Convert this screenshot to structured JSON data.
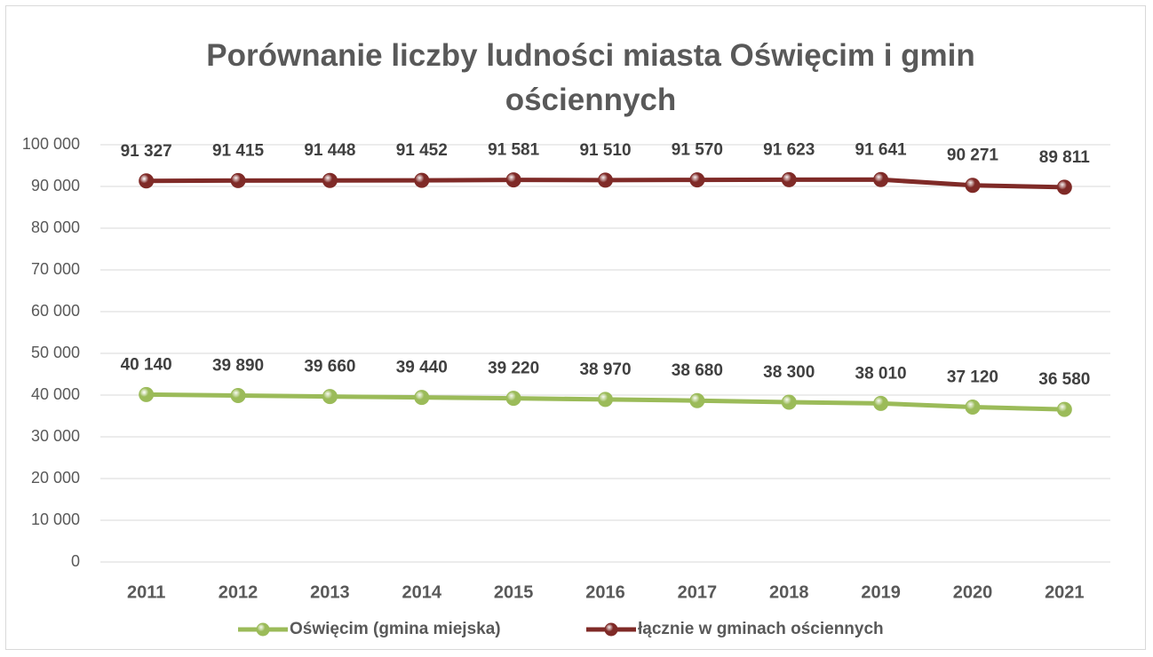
{
  "chart_data": {
    "type": "line",
    "title": "Porównanie liczby ludności miasta Oświęcim i gmin ościennych",
    "categories": [
      "2011",
      "2012",
      "2013",
      "2014",
      "2015",
      "2016",
      "2017",
      "2018",
      "2019",
      "2020",
      "2021"
    ],
    "series": [
      {
        "name": "Oświęcim (gmina miejska)",
        "color": "#9bbb59",
        "values": [
          40140,
          39890,
          39660,
          39440,
          39220,
          38970,
          38680,
          38300,
          38010,
          37120,
          36580
        ],
        "value_labels": [
          "40 140",
          "39 890",
          "39 660",
          "39 440",
          "39 220",
          "38 970",
          "38 680",
          "38 300",
          "38 010",
          "37 120",
          "36 580"
        ]
      },
      {
        "name": "łącznie w gminach ościennych",
        "color": "#7f2a27",
        "values": [
          91327,
          91415,
          91448,
          91452,
          91581,
          91510,
          91570,
          91623,
          91641,
          90271,
          89811
        ],
        "value_labels": [
          "91 327",
          "91 415",
          "91 448",
          "91 452",
          "91 581",
          "91 510",
          "91 570",
          "91 623",
          "91 641",
          "90 271",
          "89 811"
        ]
      }
    ],
    "ylim": [
      0,
      100000
    ],
    "yticks": [
      0,
      {
        "value": 10000,
        "label": "10 000"
      },
      {
        "value": 20000,
        "label": "20 000"
      },
      {
        "value": 30000,
        "label": "30 000"
      },
      {
        "value": 40000,
        "label": "40 000"
      },
      {
        "value": 50000,
        "label": "50 000"
      },
      {
        "value": 60000,
        "label": "60 000"
      },
      {
        "value": 70000,
        "label": "70 000"
      },
      {
        "value": 80000,
        "label": "80 000"
      },
      {
        "value": 90000,
        "label": "90 000"
      },
      {
        "value": 100000,
        "label": "100 000"
      }
    ],
    "grid": true,
    "legend": "bottom"
  }
}
